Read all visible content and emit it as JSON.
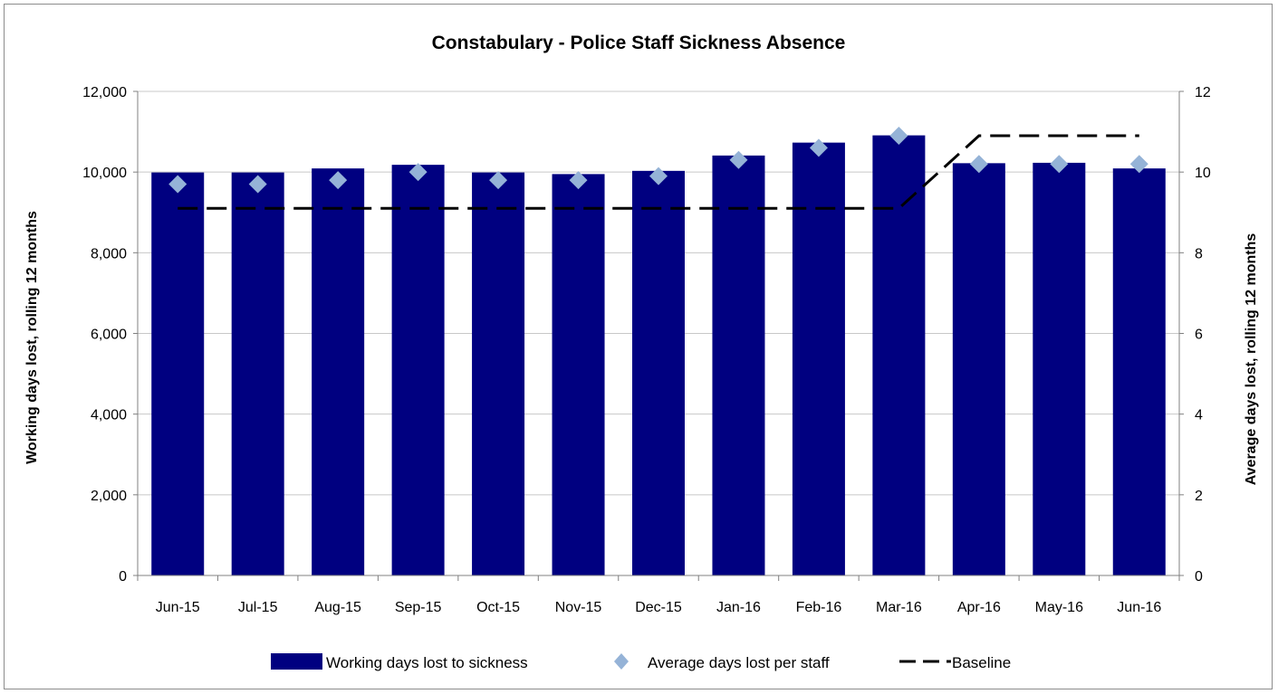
{
  "chart_data": {
    "type": "bar",
    "title": "Constabulary - Police Staff Sickness Absence",
    "categories": [
      "Jun-15",
      "Jul-15",
      "Aug-15",
      "Sep-15",
      "Oct-15",
      "Nov-15",
      "Dec-15",
      "Jan-16",
      "Feb-16",
      "Mar-16",
      "Apr-16",
      "May-16",
      "Jun-16"
    ],
    "series": [
      {
        "name": "Working days lost to sickness",
        "kind": "bar",
        "axis": "left",
        "color": "#000080",
        "values": [
          9990,
          9990,
          10090,
          10180,
          9990,
          9950,
          10030,
          10410,
          10730,
          10910,
          10220,
          10230,
          10090
        ]
      },
      {
        "name": "Average days lost per staff",
        "kind": "marker",
        "marker": "diamond",
        "axis": "right",
        "color": "#95b3d7",
        "values": [
          9.7,
          9.7,
          9.8,
          10.0,
          9.8,
          9.8,
          9.9,
          10.3,
          10.6,
          10.9,
          10.2,
          10.2,
          10.2
        ]
      },
      {
        "name": "Baseline",
        "kind": "line",
        "dash": true,
        "axis": "right",
        "color": "#000000",
        "values": [
          9.1,
          9.1,
          9.1,
          9.1,
          9.1,
          9.1,
          9.1,
          9.1,
          9.1,
          9.1,
          10.9,
          10.9,
          10.9
        ]
      }
    ],
    "ylabel": "Working days  lost, rolling  12 months",
    "ylim": [
      0,
      12000
    ],
    "yticks": [
      0,
      2000,
      4000,
      6000,
      8000,
      10000,
      12000
    ],
    "ytick_labels": [
      "0",
      "2,000",
      "4,000",
      "6,000",
      "8,000",
      "10,000",
      "12,000"
    ],
    "y2label": "Average days  lost, rolling 12 months",
    "y2lim": [
      0,
      12
    ],
    "y2ticks": [
      0,
      2,
      4,
      6,
      8,
      10,
      12
    ],
    "y2tick_labels": [
      "0",
      "2",
      "4",
      "6",
      "8",
      "10",
      "12"
    ],
    "grid": true,
    "legend": "bottom"
  }
}
